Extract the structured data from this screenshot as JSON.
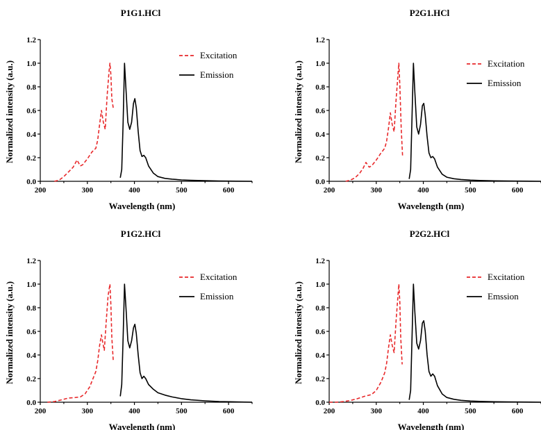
{
  "chart_data": [
    {
      "type": "line",
      "title": "P1G1.HCl",
      "xlabel": "Wavelength (nm)",
      "ylabel": "Normalized intensity (a.u.)",
      "xlim": [
        200,
        650
      ],
      "ylim": [
        0,
        1.2
      ],
      "xticks": [
        "200",
        "300",
        "400",
        "500",
        "600"
      ],
      "yticks": [
        "0.0",
        "0.2",
        "0.4",
        "0.6",
        "0.8",
        "1.0",
        "1.2"
      ],
      "legend_position": "top-right",
      "series": [
        {
          "name": "Excitation",
          "color": "#e8282a",
          "dash": "dashed",
          "x": [
            230,
            240,
            250,
            260,
            270,
            278,
            285,
            290,
            300,
            310,
            318,
            322,
            326,
            330,
            334,
            338,
            342,
            346,
            348,
            350,
            352,
            355
          ],
          "y": [
            0.0,
            0.01,
            0.04,
            0.08,
            0.12,
            0.18,
            0.13,
            0.14,
            0.19,
            0.25,
            0.28,
            0.35,
            0.48,
            0.6,
            0.5,
            0.44,
            0.72,
            0.93,
            1.0,
            0.9,
            0.7,
            0.62
          ]
        },
        {
          "name": "Emission",
          "color": "#000000",
          "dash": "solid",
          "x": [
            370,
            373,
            376,
            379,
            382,
            386,
            390,
            394,
            398,
            401,
            404,
            408,
            412,
            416,
            420,
            424,
            430,
            440,
            450,
            465,
            480,
            500,
            520,
            550,
            580,
            600,
            650
          ],
          "y": [
            0.03,
            0.1,
            0.5,
            1.0,
            0.78,
            0.5,
            0.44,
            0.5,
            0.66,
            0.7,
            0.62,
            0.42,
            0.26,
            0.21,
            0.22,
            0.2,
            0.13,
            0.07,
            0.04,
            0.025,
            0.018,
            0.012,
            0.008,
            0.005,
            0.003,
            0.002,
            0.0
          ]
        }
      ]
    },
    {
      "type": "line",
      "title": "P2G1.HCl",
      "xlabel": "Wavelength (nm)",
      "ylabel": "Normalized intensity (a.u.)",
      "xlim": [
        200,
        650
      ],
      "ylim": [
        0,
        1.2
      ],
      "xticks": [
        "200",
        "300",
        "400",
        "500",
        "600"
      ],
      "yticks": [
        "0.0",
        "0.2",
        "0.4",
        "0.6",
        "0.8",
        "1.0",
        "1.2"
      ],
      "legend_position": "top-right",
      "series": [
        {
          "name": "Excitation",
          "color": "#e8282a",
          "dash": "dashed",
          "x": [
            235,
            245,
            255,
            265,
            272,
            278,
            285,
            290,
            300,
            310,
            318,
            322,
            326,
            330,
            334,
            338,
            342,
            346,
            348,
            350,
            353,
            356
          ],
          "y": [
            0.0,
            0.01,
            0.03,
            0.07,
            0.11,
            0.16,
            0.12,
            0.13,
            0.18,
            0.24,
            0.28,
            0.34,
            0.45,
            0.58,
            0.48,
            0.42,
            0.68,
            0.9,
            1.0,
            0.82,
            0.45,
            0.21
          ]
        },
        {
          "name": "Emission",
          "color": "#000000",
          "dash": "solid",
          "x": [
            370,
            373,
            376,
            379,
            382,
            386,
            390,
            394,
            398,
            401,
            404,
            408,
            412,
            416,
            420,
            424,
            430,
            440,
            450,
            465,
            480,
            500,
            520,
            550,
            580,
            600,
            650
          ],
          "y": [
            0.02,
            0.1,
            0.55,
            1.0,
            0.75,
            0.46,
            0.4,
            0.48,
            0.64,
            0.66,
            0.56,
            0.38,
            0.24,
            0.2,
            0.21,
            0.19,
            0.12,
            0.06,
            0.035,
            0.022,
            0.015,
            0.01,
            0.007,
            0.004,
            0.003,
            0.002,
            0.0
          ]
        }
      ]
    },
    {
      "type": "line",
      "title": "P1G2.HCl",
      "xlabel": "Wavelength (nm)",
      "ylabel": "Normalized intensity (a.u.)",
      "xlim": [
        200,
        650
      ],
      "ylim": [
        0,
        1.2
      ],
      "xticks": [
        "200",
        "300",
        "400",
        "500",
        "600"
      ],
      "yticks": [
        "0.0",
        "0.2",
        "0.4",
        "0.6",
        "0.8",
        "1.0",
        "1.2"
      ],
      "legend_position": "top-right",
      "series": [
        {
          "name": "Excitation",
          "color": "#e8282a",
          "dash": "dashed",
          "x": [
            215,
            230,
            245,
            260,
            275,
            285,
            295,
            305,
            312,
            318,
            322,
            326,
            330,
            333,
            336,
            340,
            344,
            348,
            350,
            352,
            355
          ],
          "y": [
            0.0,
            0.005,
            0.02,
            0.035,
            0.04,
            0.045,
            0.07,
            0.13,
            0.2,
            0.26,
            0.35,
            0.48,
            0.57,
            0.5,
            0.44,
            0.68,
            0.9,
            1.0,
            0.82,
            0.55,
            0.35
          ]
        },
        {
          "name": "Emission",
          "color": "#000000",
          "dash": "solid",
          "x": [
            370,
            373,
            376,
            379,
            382,
            386,
            390,
            394,
            398,
            401,
            404,
            408,
            412,
            416,
            420,
            424,
            430,
            440,
            450,
            465,
            480,
            500,
            520,
            550,
            580,
            600,
            650
          ],
          "y": [
            0.05,
            0.15,
            0.55,
            1.0,
            0.8,
            0.52,
            0.46,
            0.52,
            0.63,
            0.66,
            0.58,
            0.4,
            0.25,
            0.2,
            0.22,
            0.2,
            0.15,
            0.11,
            0.08,
            0.06,
            0.045,
            0.03,
            0.02,
            0.012,
            0.006,
            0.004,
            0.0
          ]
        }
      ]
    },
    {
      "type": "line",
      "title": "P2G2.HCl",
      "xlabel": "Wavelength (nm)",
      "ylabel": "Normalized intensity (a.u.)",
      "xlim": [
        200,
        650
      ],
      "ylim": [
        0,
        1.2
      ],
      "xticks": [
        "200",
        "300",
        "400",
        "500",
        "600"
      ],
      "yticks": [
        "0.0",
        "0.2",
        "0.4",
        "0.6",
        "0.8",
        "1.0",
        "1.2"
      ],
      "legend_position": "top-right",
      "series": [
        {
          "name": "Excitation",
          "color": "#e8282a",
          "dash": "dashed",
          "x": [
            200,
            215,
            230,
            245,
            260,
            275,
            290,
            300,
            310,
            318,
            322,
            326,
            330,
            334,
            338,
            342,
            346,
            348,
            350,
            352,
            355
          ],
          "y": [
            0.0,
            0.0,
            0.005,
            0.015,
            0.03,
            0.05,
            0.065,
            0.1,
            0.17,
            0.25,
            0.33,
            0.46,
            0.57,
            0.48,
            0.42,
            0.68,
            0.9,
            1.0,
            0.85,
            0.55,
            0.32
          ]
        },
        {
          "name": "Emssion",
          "color": "#000000",
          "dash": "solid",
          "x": [
            370,
            373,
            376,
            379,
            382,
            386,
            390,
            394,
            398,
            401,
            404,
            408,
            412,
            416,
            420,
            424,
            430,
            440,
            450,
            465,
            480,
            500,
            520,
            550,
            580,
            600,
            650
          ],
          "y": [
            0.02,
            0.1,
            0.55,
            1.0,
            0.76,
            0.5,
            0.45,
            0.52,
            0.67,
            0.69,
            0.6,
            0.4,
            0.26,
            0.22,
            0.24,
            0.22,
            0.14,
            0.07,
            0.04,
            0.025,
            0.016,
            0.01,
            0.007,
            0.004,
            0.003,
            0.002,
            0.0
          ]
        }
      ]
    }
  ]
}
